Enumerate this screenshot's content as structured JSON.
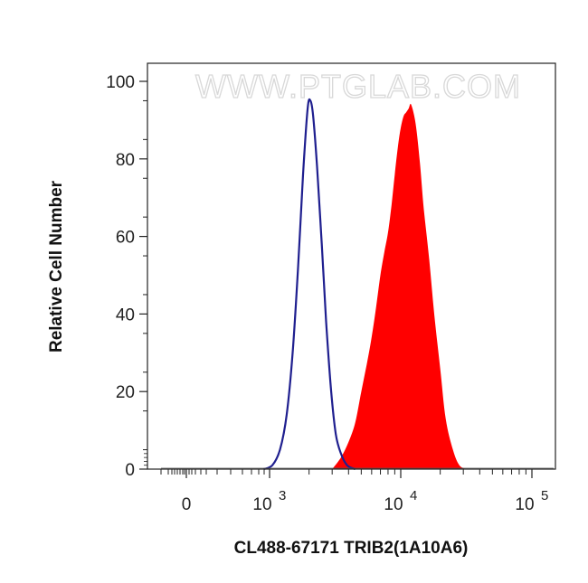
{
  "chart_data": {
    "type": "area",
    "title": "",
    "xlabel": "CL488-67171 TRIB2(1A10A6)",
    "ylabel": "Relative Cell Number",
    "watermark": "WWW.PTGLAB.COM",
    "x_scale": "biexponential-log",
    "xlim": [
      -500,
      140000
    ],
    "ylim": [
      0,
      100
    ],
    "y_ticks": [
      "0",
      "20",
      "40",
      "60",
      "80",
      "100"
    ],
    "x_ticks": [
      {
        "value": 0,
        "label": "0",
        "exp": ""
      },
      {
        "value": 1000,
        "label": "10",
        "exp": "3"
      },
      {
        "value": 10000,
        "label": "10",
        "exp": "4"
      },
      {
        "value": 100000,
        "label": "10",
        "exp": "5"
      }
    ],
    "grid": false,
    "series": [
      {
        "style": "outline",
        "color": "#1f1f8f",
        "x": [
          900,
          1050,
          1200,
          1350,
          1500,
          1650,
          1800,
          1950,
          2050,
          2150,
          2300,
          2500,
          2700,
          2950,
          3200,
          3500,
          3900,
          4500
        ],
        "y": [
          0,
          1,
          5,
          14,
          30,
          52,
          76,
          93,
          95,
          91,
          78,
          58,
          38,
          20,
          9,
          4,
          1,
          0
        ]
      },
      {
        "style": "filled",
        "color": "#ff0000",
        "x": [
          3000,
          3500,
          4000,
          4500,
          5000,
          5500,
          6000,
          6500,
          7000,
          7500,
          8000,
          8500,
          9000,
          9500,
          10000,
          10500,
          11000,
          11500,
          12000,
          13000,
          14000,
          15000,
          16500,
          18000,
          20000,
          22000,
          25000,
          28000,
          32000
        ],
        "y": [
          0,
          3,
          7,
          12,
          20,
          27,
          34,
          42,
          50,
          56,
          61,
          68,
          76,
          83,
          88,
          91,
          92,
          93,
          94,
          89,
          79,
          67,
          54,
          40,
          26,
          13,
          5,
          1,
          0
        ]
      }
    ]
  }
}
